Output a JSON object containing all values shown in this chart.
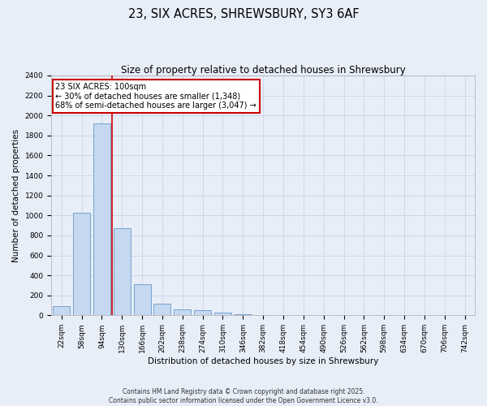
{
  "title": "23, SIX ACRES, SHREWSBURY, SY3 6AF",
  "subtitle": "Size of property relative to detached houses in Shrewsbury",
  "xlabel": "Distribution of detached houses by size in Shrewsbury",
  "ylabel": "Number of detached properties",
  "bar_values": [
    90,
    1030,
    1920,
    875,
    310,
    120,
    57,
    48,
    30,
    15,
    0,
    0,
    0,
    0,
    0,
    0,
    0,
    0,
    0,
    0,
    0
  ],
  "bar_labels": [
    "22sqm",
    "58sqm",
    "94sqm",
    "130sqm",
    "166sqm",
    "202sqm",
    "238sqm",
    "274sqm",
    "310sqm",
    "346sqm",
    "382sqm",
    "418sqm",
    "454sqm",
    "490sqm",
    "526sqm",
    "562sqm",
    "598sqm",
    "634sqm",
    "670sqm",
    "706sqm",
    "742sqm"
  ],
  "bar_color": "#c5d8ef",
  "bar_edge_color": "#6699cc",
  "grid_color": "#c8d4e8",
  "background_color": "#e8eef8",
  "fig_background_color": "#e8eef8",
  "vline_color": "#cc0000",
  "annotation_text": "23 SIX ACRES: 100sqm\n← 30% of detached houses are smaller (1,348)\n68% of semi-detached houses are larger (3,047) →",
  "annotation_box_color": "#cc0000",
  "annotation_bg": "#ffffff",
  "ylim": [
    0,
    2400
  ],
  "yticks": [
    0,
    200,
    400,
    600,
    800,
    1000,
    1200,
    1400,
    1600,
    1800,
    2000,
    2200,
    2400
  ],
  "footnote": "Contains HM Land Registry data © Crown copyright and database right 2025.\nContains public sector information licensed under the Open Government Licence v3.0.",
  "title_fontsize": 10.5,
  "subtitle_fontsize": 8.5,
  "axis_label_fontsize": 7.5,
  "tick_fontsize": 6.5,
  "annotation_fontsize": 7,
  "footnote_fontsize": 5.5
}
